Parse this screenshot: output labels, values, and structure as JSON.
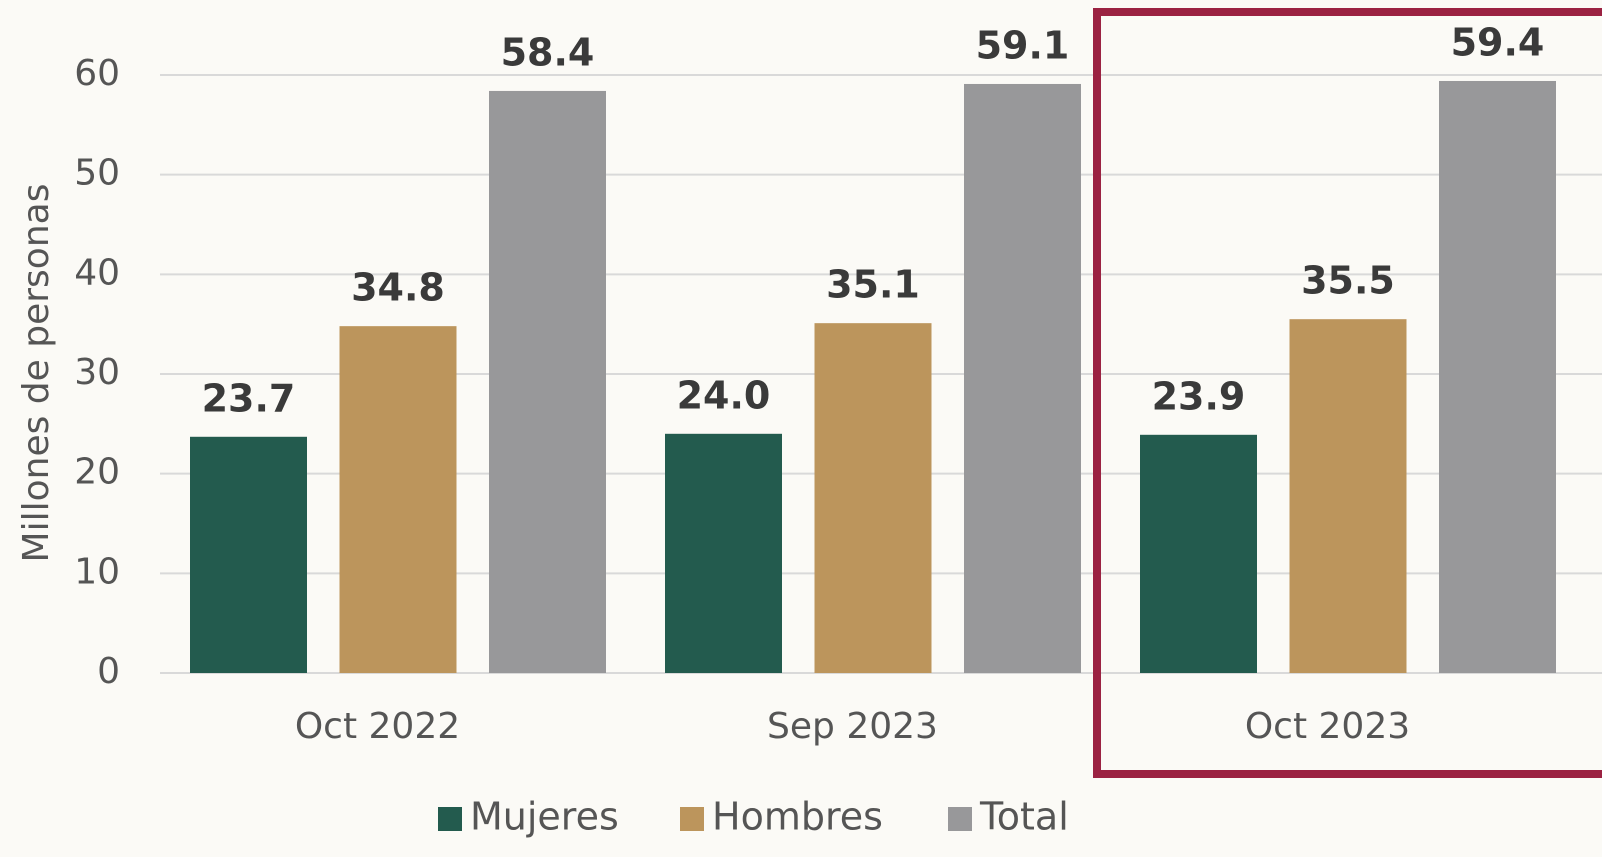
{
  "chart_data": {
    "type": "bar",
    "y_label": "Millones de personas",
    "categories": [
      "Oct 2022",
      "Sep 2023",
      "Oct 2023"
    ],
    "series": [
      {
        "name": "Mujeres",
        "color": "#235b4e",
        "values": [
          23.7,
          24.0,
          23.9
        ],
        "value_labels": [
          "23.7",
          "24.0",
          "23.9"
        ]
      },
      {
        "name": "Hombres",
        "color": "#bc955c",
        "values": [
          34.8,
          35.1,
          35.5
        ],
        "value_labels": [
          "34.8",
          "35.1",
          "35.5"
        ]
      },
      {
        "name": "Total",
        "color": "#98989a",
        "values": [
          58.4,
          59.1,
          59.4
        ],
        "value_labels": [
          "58.4",
          "59.1",
          "59.4"
        ]
      }
    ],
    "ylim": [
      0,
      60
    ],
    "yticks": [
      0,
      10,
      20,
      30,
      40,
      50,
      60
    ],
    "grid": true
  }
}
